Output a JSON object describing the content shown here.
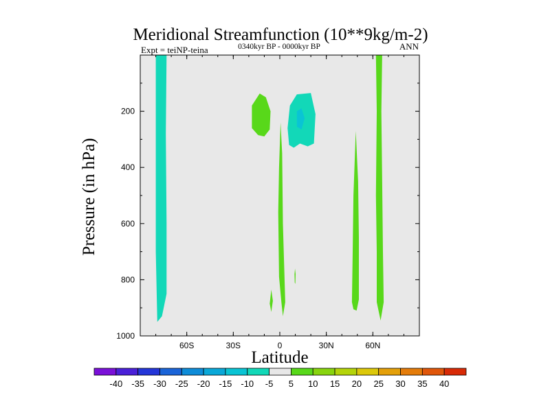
{
  "chart_data": {
    "type": "contour",
    "title": "Meridional Streamfunction (10**9kg/m-2)",
    "subtitle": "0340kyr BP - 0000kyr BP",
    "left_annotation": "Expt = teiNP-teina",
    "right_annotation": "ANN",
    "xlabel": "Latitude",
    "ylabel": "Pressure (in hPa)",
    "xlim": [
      -90,
      90
    ],
    "ylim": [
      1000,
      0
    ],
    "x_ticks": [
      {
        "value": -60,
        "label": "60S"
      },
      {
        "value": -30,
        "label": "30S"
      },
      {
        "value": 0,
        "label": "0"
      },
      {
        "value": 30,
        "label": "30N"
      },
      {
        "value": 60,
        "label": "60N"
      }
    ],
    "y_ticks": [
      {
        "value": 200,
        "label": "200"
      },
      {
        "value": 400,
        "label": "400"
      },
      {
        "value": 600,
        "label": "600"
      },
      {
        "value": 800,
        "label": "800"
      },
      {
        "value": 1000,
        "label": "1000"
      }
    ],
    "background_color": "#e8e8e8",
    "colorbar": {
      "boundaries": [
        "-40",
        "-35",
        "-30",
        "-25",
        "-20",
        "-15",
        "-10",
        "-5",
        "5",
        "10",
        "15",
        "20",
        "25",
        "30",
        "35",
        "40"
      ],
      "colors": [
        "#7a10d8",
        "#4a20d8",
        "#2436d8",
        "#1a64d8",
        "#0e8cd8",
        "#0aa8d8",
        "#0ac4d4",
        "#12d8b8",
        "#e8e8e8",
        "#58d81a",
        "#88d40e",
        "#b4d40a",
        "#dcc80a",
        "#e4a00a",
        "#e47c0a",
        "#e0560a",
        "#d82a06"
      ]
    },
    "regions": [
      {
        "name": "southern-high-latitude-negative-column",
        "color": "#12d8b8",
        "points": [
          [
            -80,
            0
          ],
          [
            -73,
            0
          ],
          [
            -73.5,
            280
          ],
          [
            -73,
            600
          ],
          [
            -73,
            850
          ],
          [
            -76,
            930
          ],
          [
            -79,
            950
          ],
          [
            -80,
            700
          ],
          [
            -80,
            400
          ]
        ]
      },
      {
        "name": "tropical-negative-cell-outer",
        "color": "#12d8b8",
        "points": [
          [
            6,
            320
          ],
          [
            5,
            260
          ],
          [
            6.5,
            180
          ],
          [
            11,
            140
          ],
          [
            20,
            135
          ],
          [
            23,
            210
          ],
          [
            22,
            315
          ],
          [
            18,
            325
          ],
          [
            13,
            315
          ],
          [
            9,
            330
          ]
        ]
      },
      {
        "name": "tropical-negative-cell-core",
        "color": "#0ac4d4",
        "points": [
          [
            11,
            200
          ],
          [
            14,
            190
          ],
          [
            16,
            225
          ],
          [
            14,
            265
          ],
          [
            11,
            255
          ]
        ]
      },
      {
        "name": "southern-tropical-positive-cell",
        "color": "#58d81a",
        "points": [
          [
            -18,
            260
          ],
          [
            -18,
            180
          ],
          [
            -13,
            137
          ],
          [
            -9,
            150
          ],
          [
            -6,
            200
          ],
          [
            -6.5,
            265
          ],
          [
            -10,
            290
          ],
          [
            -14,
            285
          ]
        ]
      },
      {
        "name": "equatorial-positive-column",
        "color": "#58d81a",
        "points": [
          [
            -1,
            560
          ],
          [
            -0.5,
            400
          ],
          [
            0.5,
            240
          ],
          [
            1.5,
            350
          ],
          [
            2,
            600
          ],
          [
            3,
            790
          ],
          [
            3.5,
            880
          ],
          [
            2,
            930
          ],
          [
            1,
            880
          ],
          [
            -0.5,
            790
          ]
        ]
      },
      {
        "name": "near-surface-positive-speck-left",
        "color": "#58d81a",
        "points": [
          [
            -6.5,
            885
          ],
          [
            -5.5,
            835
          ],
          [
            -4.5,
            875
          ],
          [
            -5.5,
            915
          ]
        ]
      },
      {
        "name": "near-surface-positive-speck-right",
        "color": "#58d81a",
        "points": [
          [
            9.5,
            780
          ],
          [
            9.8,
            760
          ],
          [
            10.2,
            780
          ],
          [
            10,
            815
          ],
          [
            9.6,
            810
          ]
        ]
      },
      {
        "name": "northern-midlatitude-positive-column",
        "color": "#58d81a",
        "points": [
          [
            46.5,
            880
          ],
          [
            47,
            700
          ],
          [
            47.5,
            500
          ],
          [
            49,
            270
          ],
          [
            50.5,
            450
          ],
          [
            51,
            650
          ],
          [
            51,
            870
          ],
          [
            49.5,
            910
          ],
          [
            47.5,
            905
          ]
        ]
      },
      {
        "name": "northern-high-latitude-positive-column",
        "color": "#58d81a",
        "points": [
          [
            62,
            0
          ],
          [
            66,
            0
          ],
          [
            65.5,
            200
          ],
          [
            66,
            450
          ],
          [
            66.5,
            700
          ],
          [
            67,
            880
          ],
          [
            65,
            945
          ],
          [
            62.5,
            880
          ],
          [
            62.5,
            700
          ],
          [
            62,
            500
          ],
          [
            62.5,
            200
          ]
        ]
      }
    ]
  }
}
